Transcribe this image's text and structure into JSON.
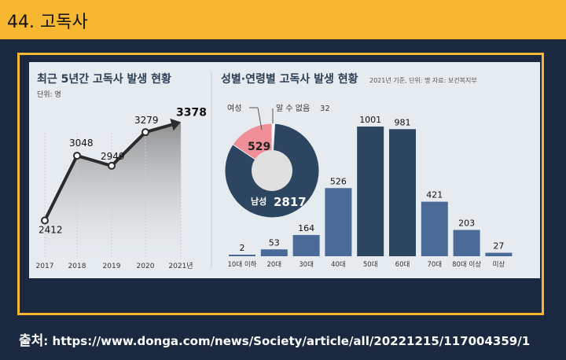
{
  "header": {
    "title": "44. 고독사"
  },
  "source": {
    "label": "출처",
    "sep": ":",
    "url": "https://www.donga.com/news/Society/article/all/20221215/117004359/1"
  },
  "chart_data": [
    {
      "type": "line",
      "title": "최근 5년간 고독사 발생 현황",
      "unit": "단위: 명",
      "x": [
        "2017",
        "2018",
        "2019",
        "2020",
        "2021년"
      ],
      "values": [
        2412,
        3048,
        2949,
        3279,
        3378
      ],
      "ylim": [
        2300,
        3450
      ]
    },
    {
      "type": "pie",
      "title": "성별·연령별 고독사 발생 현황",
      "note": "2021년 기준, 단위: 명   자료: 보건복지부",
      "slices": [
        {
          "label": "남성",
          "value": 2817,
          "color": "#2c4560"
        },
        {
          "label": "여성",
          "value": 529,
          "color": "#f08f98"
        },
        {
          "label": "알 수 없음",
          "value": 32,
          "color": "#ffffff"
        }
      ]
    },
    {
      "type": "bar",
      "categories": [
        "10대 이하",
        "20대",
        "30대",
        "40대",
        "50대",
        "60대",
        "70대",
        "80대 이상",
        "미상"
      ],
      "values": [
        2,
        53,
        164,
        526,
        1001,
        981,
        421,
        203,
        27
      ],
      "colors": [
        "#4a6a97",
        "#4a6a97",
        "#4a6a97",
        "#4a6a97",
        "#2c4560",
        "#2c4560",
        "#4a6a97",
        "#4a6a97",
        "#4a6a97"
      ],
      "ylim": [
        0,
        1001
      ]
    }
  ]
}
